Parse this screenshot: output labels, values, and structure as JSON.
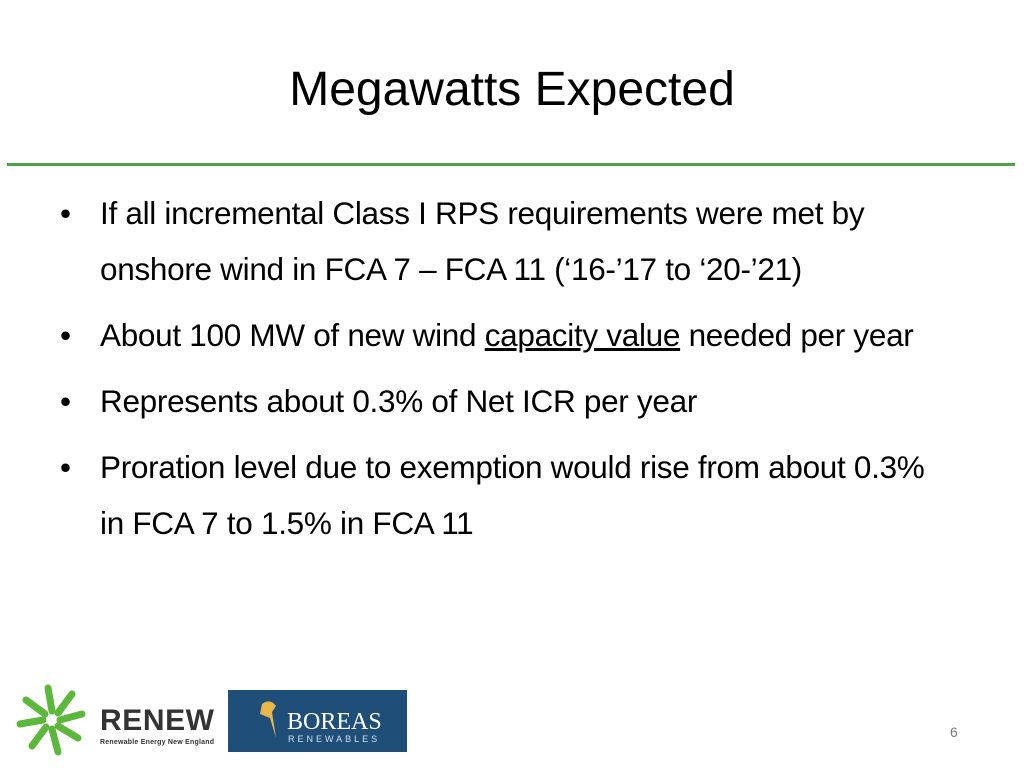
{
  "title": "Megawatts Expected",
  "bullets": [
    [
      "If all incremental Class I RPS requirements were met by onshore wind in FCA 7 – FCA 11 (‘16-’17 to ‘20-’21)"
    ],
    [
      "About 100 MW of new wind ",
      "capacity value",
      " needed per year"
    ],
    [
      "Represents about 0.3% of Net ICR per year"
    ],
    [
      "Proration level due to exemption would rise from about 0.3% in FCA 7 to 1.5% in FCA 11"
    ]
  ],
  "footer": {
    "renew_name": "RENEW",
    "renew_tagline": "Renewable Energy New England",
    "boreas_name": "BOREAS",
    "boreas_tagline": "RENEWABLES",
    "page_number": "6"
  }
}
